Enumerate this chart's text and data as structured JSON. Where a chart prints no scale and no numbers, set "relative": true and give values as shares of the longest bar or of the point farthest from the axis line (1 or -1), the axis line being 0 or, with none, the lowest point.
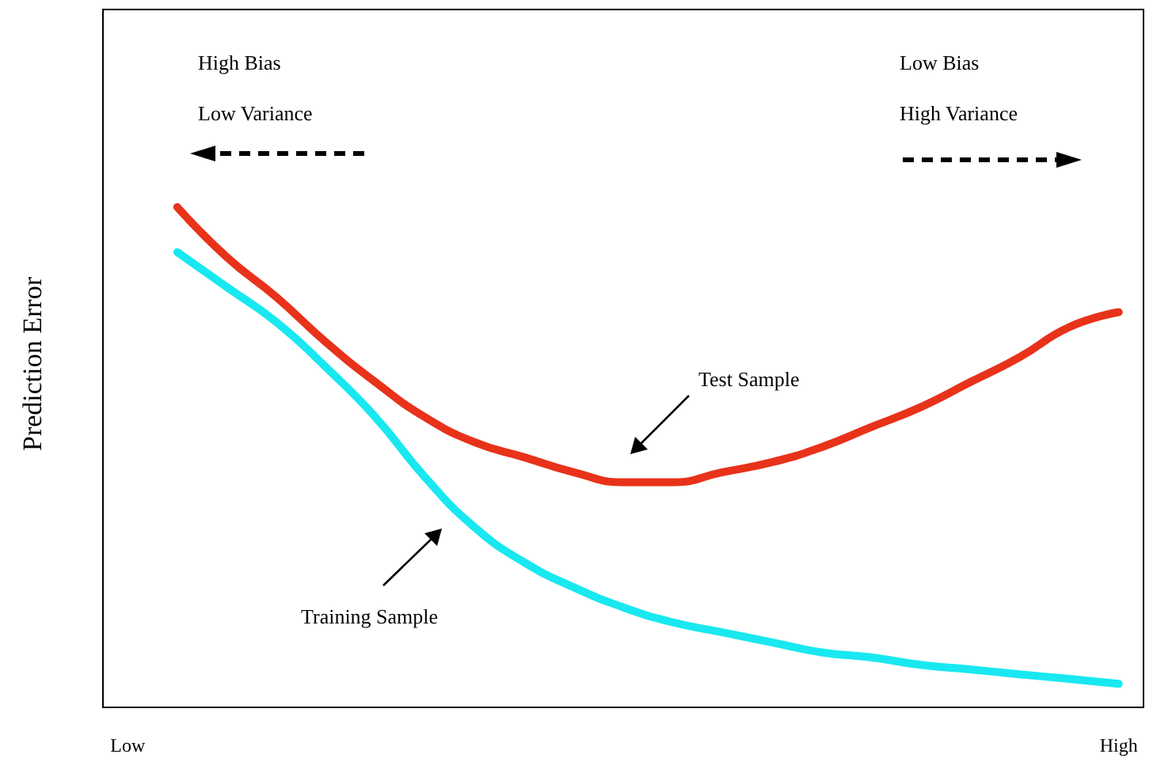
{
  "chart_data": {
    "type": "line",
    "relative": true,
    "ylabel": "Prediction Error",
    "categories": [
      "Low",
      null,
      null,
      null,
      null,
      null,
      null,
      null,
      null,
      null,
      null,
      null,
      null,
      null,
      null,
      null,
      null,
      null,
      null,
      null,
      "High"
    ],
    "series": [
      {
        "color": "#e8321a",
        "values": [
          null,
          1,
          0.9,
          0.82,
          0.73,
          0.65,
          0.58,
          0.53,
          0.5,
          0.47,
          0.45,
          0.45,
          0.47,
          0.49,
          0.52,
          0.56,
          0.6,
          0.65,
          0.7,
          0.76,
          0.79
        ]
      },
      {
        "color": "#19e8f0",
        "values": [
          null,
          0.91,
          0.84,
          0.77,
          0.68,
          0.58,
          0.46,
          0.36,
          0.29,
          0.24,
          0.2,
          0.17,
          0.15,
          0.13,
          0.11,
          0.1,
          0.085,
          0.076,
          0.066,
          0.057,
          0.047
        ]
      }
    ],
    "annotations": [
      "High Bias",
      "Low Variance",
      "Low Bias",
      "High Variance",
      "Test Sample",
      "Training Sample"
    ],
    "marker": "none",
    "line_style": "solid",
    "grid": false
  }
}
